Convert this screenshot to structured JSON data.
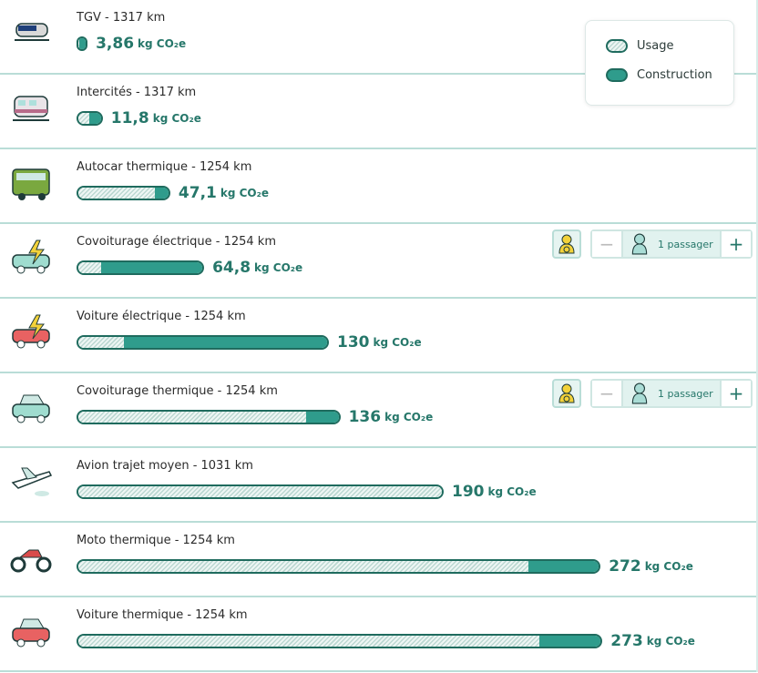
{
  "unit": "kg CO₂e",
  "colors": {
    "usage": "#bcd8d2",
    "construction": "#2f9c8c",
    "accent": "#26776a"
  },
  "legend": {
    "usage_label": "Usage",
    "construction_label": "Construction"
  },
  "passenger": {
    "label": "1 passager",
    "minus": "−",
    "plus": "+"
  },
  "chart_data": {
    "type": "bar",
    "stacked": true,
    "orientation": "horizontal",
    "series_names": [
      "Usage",
      "Construction"
    ],
    "xlim": [
      0,
      273
    ]
  },
  "items": [
    {
      "title": "TGV - 1317 km",
      "value": "3,86",
      "total": 3.86,
      "usage": 0.6,
      "construction": 3.26,
      "icon": "tgv-train-icon"
    },
    {
      "title": "Intercités - 1317 km",
      "value": "11,8",
      "total": 11.8,
      "usage": 5.8,
      "construction": 6.0,
      "icon": "intercites-train-icon"
    },
    {
      "title": "Autocar thermique - 1254 km",
      "value": "47,1",
      "total": 47.1,
      "usage": 40,
      "construction": 7.1,
      "icon": "bus-icon"
    },
    {
      "title": "Covoiturage électrique - 1254 km",
      "value": "64,8",
      "total": 64.8,
      "usage": 12,
      "construction": 52.8,
      "icon": "electric-car-icon",
      "passengers": true
    },
    {
      "title": "Voiture électrique - 1254 km",
      "value": "130",
      "total": 130,
      "usage": 24,
      "construction": 106,
      "icon": "electric-car-red-icon"
    },
    {
      "title": "Covoiturage thermique - 1254 km",
      "value": "136",
      "total": 136,
      "usage": 119,
      "construction": 17,
      "icon": "car-icon",
      "passengers": true
    },
    {
      "title": "Avion trajet moyen - 1031 km",
      "value": "190",
      "total": 190,
      "usage": 190,
      "construction": 0,
      "icon": "plane-icon"
    },
    {
      "title": "Moto thermique - 1254 km",
      "value": "272",
      "total": 272,
      "usage": 235,
      "construction": 37,
      "icon": "motorcycle-icon"
    },
    {
      "title": "Voiture thermique - 1254 km",
      "value": "273",
      "total": 273,
      "usage": 241,
      "construction": 32,
      "icon": "car-red-icon"
    }
  ]
}
